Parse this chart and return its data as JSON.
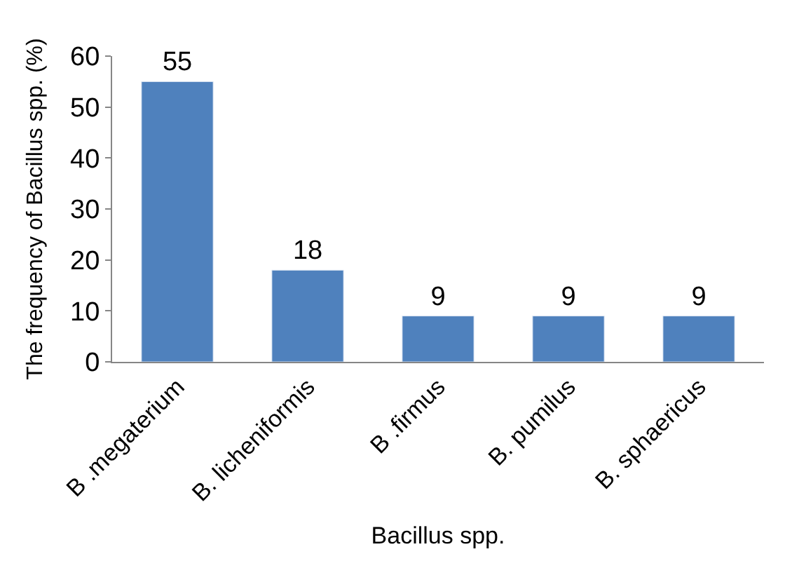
{
  "chart_data": {
    "type": "bar",
    "categories": [
      "B .megaterium",
      "B. licheniformis",
      "B .firmus",
      "B. pumilus",
      "B. sphaericus"
    ],
    "values": [
      55,
      18,
      9,
      9,
      9
    ],
    "color": "#4f81bd",
    "ylim": [
      0,
      60
    ],
    "yticks": [
      0,
      10,
      20,
      30,
      40,
      50,
      60
    ],
    "legend": false,
    "data_labels": true,
    "xlabel": "Bacillus spp.",
    "ylabel": "The frequency of Bacillus spp. (%)"
  }
}
